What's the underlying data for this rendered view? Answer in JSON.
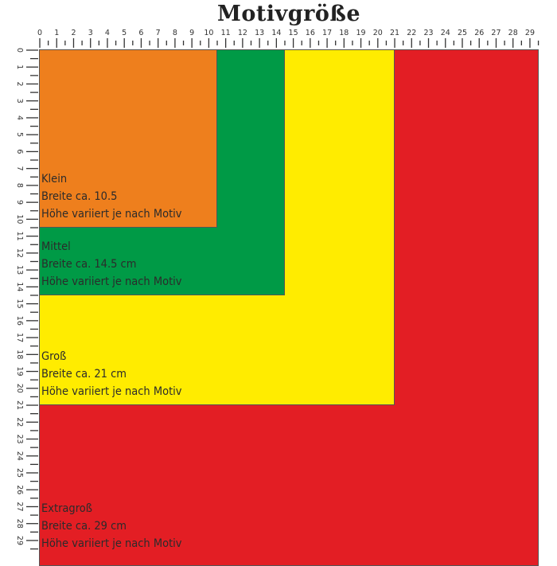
{
  "title": "Motivgröße",
  "ruler": {
    "unit_max": 29,
    "labels": [
      "0",
      "1",
      "2",
      "3",
      "4",
      "5",
      "6",
      "7",
      "8",
      "9",
      "10",
      "11",
      "12",
      "13",
      "14",
      "15",
      "16",
      "17",
      "18",
      "19",
      "20",
      "21",
      "22",
      "23",
      "24",
      "25",
      "26",
      "27",
      "28",
      "29"
    ]
  },
  "sizes": [
    {
      "name": "Extragroß",
      "width_text": "Breite ca. 29 cm",
      "height_text": "Höhe variiert je nach Motiv",
      "width_cm": 29.5,
      "height_cm": 30.5,
      "color": "#E31E24"
    },
    {
      "name": "Groß",
      "width_text": "Breite ca. 21 cm",
      "height_text": "Höhe variiert je nach Motiv",
      "width_cm": 21,
      "height_cm": 21,
      "color": "#FFEC00"
    },
    {
      "name": "Mittel",
      "width_text": "Breite ca. 14.5 cm",
      "height_text": "Höhe variiert je nach Motiv",
      "width_cm": 14.5,
      "height_cm": 14.5,
      "color": "#009A46"
    },
    {
      "name": "Klein",
      "width_text": "Breite ca. 10.5",
      "height_text": "Höhe variiert je nach Motiv",
      "width_cm": 10.5,
      "height_cm": 10.5,
      "color": "#EE7F1D"
    }
  ]
}
